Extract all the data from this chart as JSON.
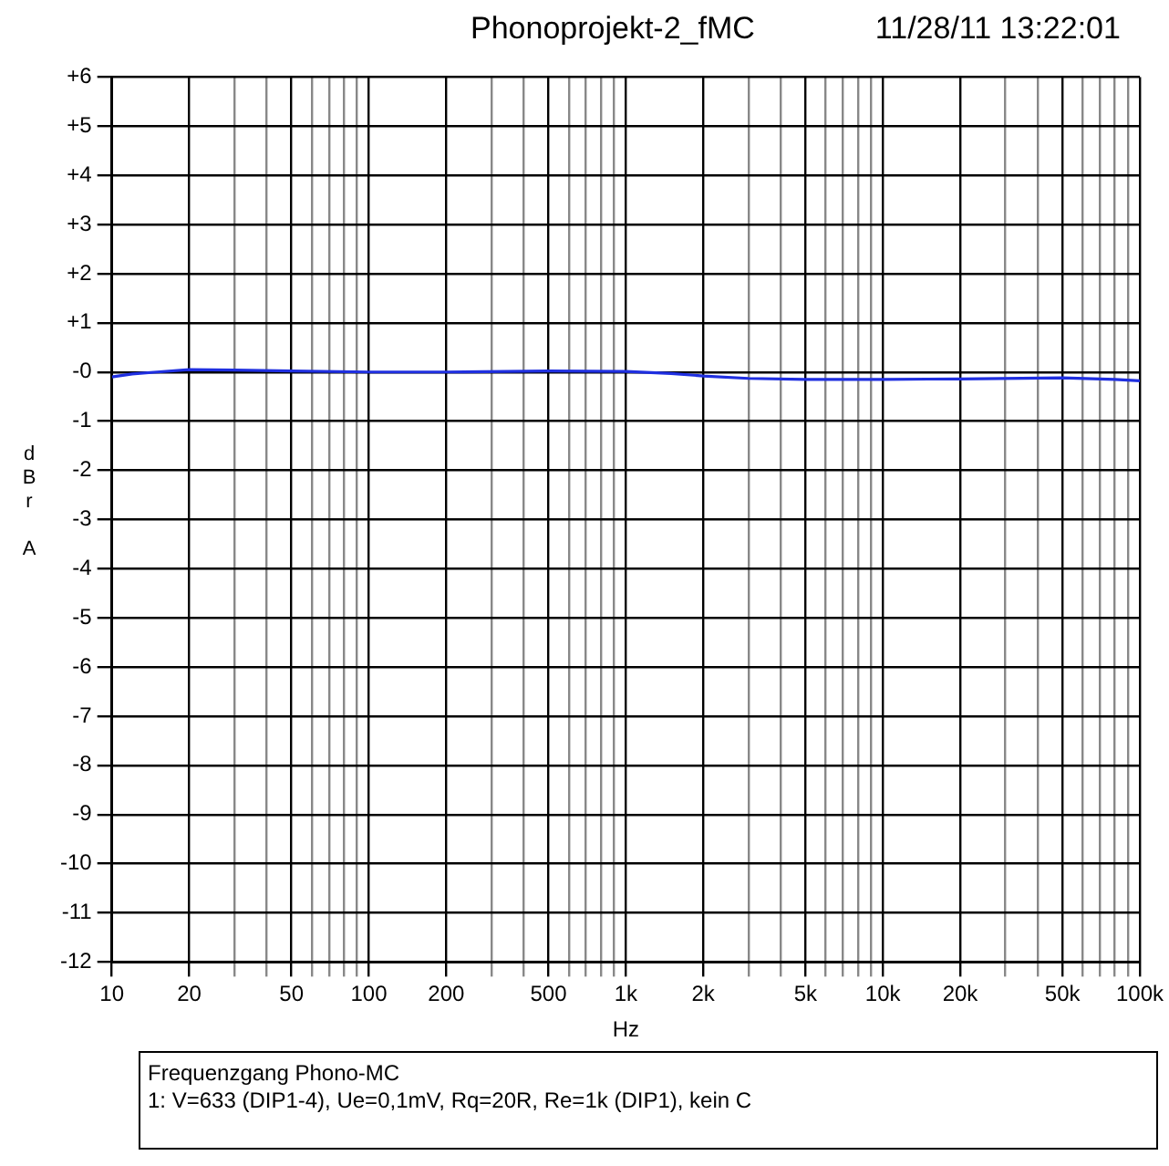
{
  "chart_data": {
    "type": "line",
    "title": "Phonoprojekt-2_fMC",
    "subtitle": "11/28/11 13:22:01",
    "xlabel": "Hz",
    "ylabel": "dBr A",
    "annotations": [
      "Frequenzgang Phono-MC",
      "1: V=633 (DIP1-4), Ue=0,1mV, Rq=20R, Re=1k (DIP1), kein C"
    ],
    "log": "x",
    "grid": true,
    "legend": false,
    "marker": "none",
    "line_style": "solid",
    "xlim": [
      10,
      100000
    ],
    "ylim": [
      -12,
      6
    ],
    "xticks": [
      10,
      20,
      {
        "value": 30,
        "label": null
      },
      {
        "value": 40,
        "label": null
      },
      50,
      {
        "value": 60,
        "label": null
      },
      {
        "value": 70,
        "label": null
      },
      {
        "value": 80,
        "label": null
      },
      {
        "value": 90,
        "label": null
      },
      100,
      200,
      {
        "value": 300,
        "label": null
      },
      {
        "value": 400,
        "label": null
      },
      500,
      {
        "value": 600,
        "label": null
      },
      {
        "value": 700,
        "label": null
      },
      {
        "value": 800,
        "label": null
      },
      {
        "value": 900,
        "label": null
      },
      {
        "value": 1000,
        "label": "1k"
      },
      {
        "value": 2000,
        "label": "2k"
      },
      {
        "value": 3000,
        "label": null
      },
      {
        "value": 4000,
        "label": null
      },
      {
        "value": 5000,
        "label": "5k"
      },
      {
        "value": 6000,
        "label": null
      },
      {
        "value": 7000,
        "label": null
      },
      {
        "value": 8000,
        "label": null
      },
      {
        "value": 9000,
        "label": null
      },
      {
        "value": 10000,
        "label": "10k"
      },
      {
        "value": 20000,
        "label": "20k"
      },
      {
        "value": 30000,
        "label": null
      },
      {
        "value": 40000,
        "label": null
      },
      {
        "value": 50000,
        "label": "50k"
      },
      {
        "value": 60000,
        "label": null
      },
      {
        "value": 70000,
        "label": null
      },
      {
        "value": 80000,
        "label": null
      },
      {
        "value": 90000,
        "label": null
      },
      {
        "value": 100000,
        "label": "100k"
      }
    ],
    "yticks": [
      {
        "value": 6,
        "label": "+6"
      },
      {
        "value": 5,
        "label": "+5"
      },
      {
        "value": 4,
        "label": "+4"
      },
      {
        "value": 3,
        "label": "+3"
      },
      {
        "value": 2,
        "label": "+2"
      },
      {
        "value": 1,
        "label": "+1"
      },
      {
        "value": 0,
        "label": "-0"
      },
      -1,
      -2,
      -3,
      -4,
      -5,
      -6,
      -7,
      -8,
      -9,
      -10,
      -11,
      -12
    ],
    "series": [
      {
        "color": "#1f2fe0",
        "x": [
          10,
          12,
          15,
          20,
          30,
          50,
          100,
          200,
          500,
          1000,
          1500,
          2000,
          3000,
          5000,
          10000,
          20000,
          50000,
          80000,
          100000
        ],
        "values": [
          -0.1,
          -0.04,
          0,
          0.05,
          0.04,
          0.02,
          0,
          0,
          0.02,
          0.01,
          -0.03,
          -0.08,
          -0.13,
          -0.15,
          -0.15,
          -0.14,
          -0.12,
          -0.15,
          -0.18
        ]
      }
    ]
  }
}
